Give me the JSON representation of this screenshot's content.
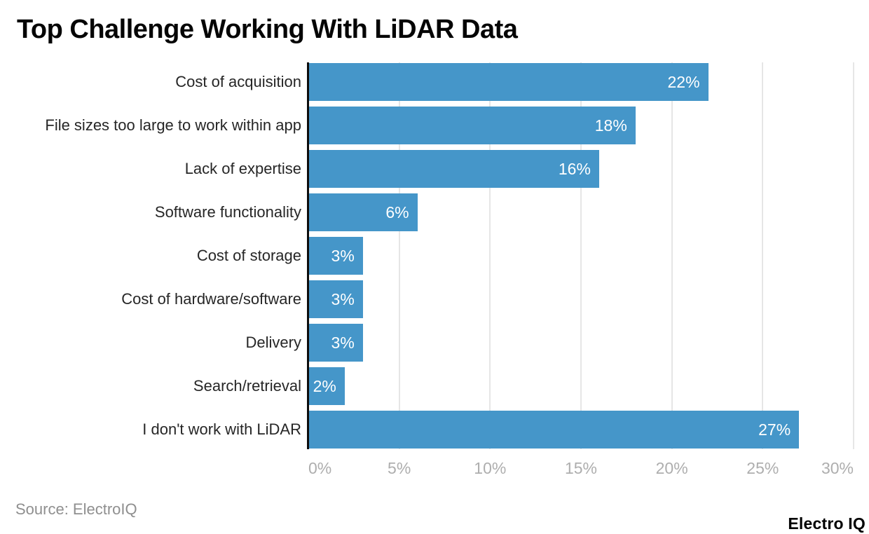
{
  "chart_data": {
    "type": "bar",
    "orientation": "horizontal",
    "title": "Top Challenge Working With LiDAR Data",
    "categories": [
      "Cost of acquisition",
      "File sizes too large to work within app",
      "Lack of expertise",
      "Software functionality",
      "Cost of storage",
      "Cost of hardware/software",
      "Delivery",
      "Search/retrieval",
      "I don't work with LiDAR"
    ],
    "values": [
      22,
      18,
      16,
      6,
      3,
      3,
      3,
      2,
      27
    ],
    "value_labels": [
      "22%",
      "18%",
      "16%",
      "6%",
      "3%",
      "3%",
      "3%",
      "2%",
      "27%"
    ],
    "x_ticks": [
      0,
      5,
      10,
      15,
      20,
      25,
      30
    ],
    "x_tick_labels": [
      "0%",
      "5%",
      "10%",
      "15%",
      "20%",
      "25%",
      "30%"
    ],
    "xlim": [
      0,
      30
    ],
    "xlabel": "",
    "ylabel": "",
    "grid": "vertical-gridlines",
    "legend": "none",
    "bar_color": "#4596C9"
  },
  "footer": {
    "source": "Source: ElectroIQ",
    "brand": "Electro IQ"
  },
  "colors": {
    "background": "#ffffff",
    "bar": "#4596C9",
    "axis_line": "#0d0d0d",
    "gridline": "#e6e6e6",
    "title": "#050505",
    "category_label": "#262626",
    "value_label": "#ffffff",
    "tick_label": "#aeaeae",
    "source": "#8f8f8f",
    "brand": "#000000"
  }
}
